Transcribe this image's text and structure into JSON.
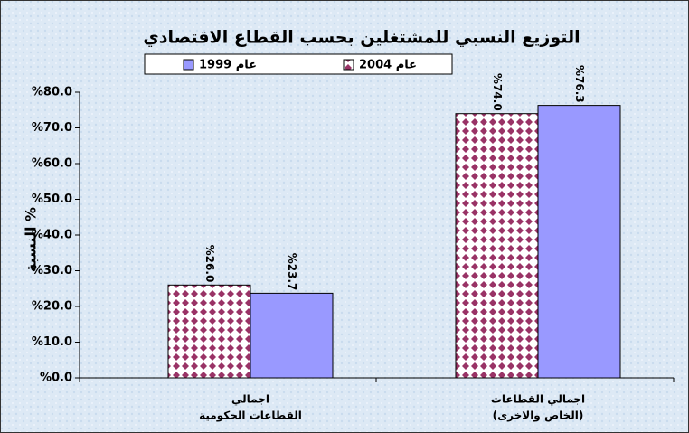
{
  "chart_data": {
    "type": "bar",
    "title": "التوزيع النسبي للمشتغلين بحسب القطاع الاقتصادي",
    "y_label": "النسبة %",
    "categories": [
      [
        "اجمالي",
        "القطاعات الحكومية"
      ],
      [
        "اجمالي القطاعات",
        "(الخاص والاخرى)"
      ]
    ],
    "series": [
      {
        "name": "عام 2004",
        "color": "#993366",
        "fill_pattern": "diamond",
        "values": [
          26.0,
          74.0
        ],
        "value_labels": [
          "%26.0",
          "%74.0"
        ]
      },
      {
        "name": "عام 1999",
        "color": "#9999ff",
        "values": [
          23.7,
          76.3
        ],
        "value_labels": [
          "%23.7",
          "%76.3"
        ]
      }
    ],
    "ylim": [
      0,
      80
    ],
    "yticks": [
      {
        "value": 0,
        "label": "%0.0"
      },
      {
        "value": 10,
        "label": "%10.0"
      },
      {
        "value": 20,
        "label": "%20.0"
      },
      {
        "value": 30,
        "label": "%30.0"
      },
      {
        "value": 40,
        "label": "%40.0"
      },
      {
        "value": 50,
        "label": "%50.0"
      },
      {
        "value": 60,
        "label": "%60.0"
      },
      {
        "value": 70,
        "label": "%70.0"
      },
      {
        "value": 80,
        "label": "%80.0"
      }
    ],
    "grid": false
  }
}
